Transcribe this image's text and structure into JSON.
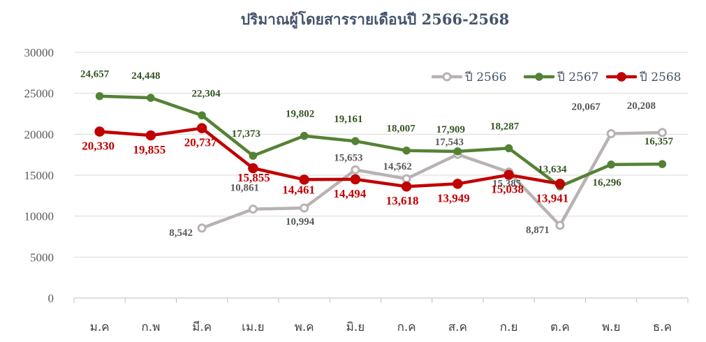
{
  "chart_data": {
    "type": "line",
    "title": "ปริมาณผู้โดยสารรายเดือนปี 2566-2568",
    "categories": [
      "ม.ค",
      "ก.พ",
      "มี.ค",
      "เม.ย",
      "พ.ค",
      "มิ.ย",
      "ก.ค",
      "ส.ค",
      "ก.ย",
      "ต.ค",
      "พ.ย",
      "ธ.ค"
    ],
    "ylim": [
      0,
      30000
    ],
    "yticks": [
      "0",
      "5000",
      "10000",
      "15000",
      "20000",
      "25000",
      "30000"
    ],
    "grid": true,
    "legend_position": "top-right",
    "series": [
      {
        "name": "ปี 2566",
        "color": "#b9b2b2",
        "values": [
          null,
          null,
          8542,
          10861,
          10994,
          15653,
          14562,
          17543,
          15385,
          8871,
          20067,
          20208
        ],
        "labels": [
          null,
          null,
          "8,542",
          "10,861",
          "10,994",
          "15,653",
          "14,562",
          "17,543",
          "15,385",
          "8,871",
          "20,067",
          "20,208"
        ]
      },
      {
        "name": "ปี 2567",
        "color": "#548235",
        "values": [
          24657,
          24448,
          22304,
          17373,
          19802,
          19161,
          18007,
          17909,
          18287,
          13634,
          16296,
          16357
        ],
        "labels": [
          "24,657",
          "24,448",
          "22,304",
          "17,373",
          "19,802",
          "19,161",
          "18,007",
          "17,909",
          "18,287",
          "13,634",
          "16,296",
          "16,357"
        ]
      },
      {
        "name": "ปี 2568",
        "color": "#c00000",
        "values": [
          20330,
          19855,
          20737,
          15855,
          14461,
          14494,
          13618,
          13949,
          15038,
          13941,
          null,
          null
        ],
        "labels": [
          "20,330",
          "19,855",
          "20,737",
          "15,855",
          "14,461",
          "14,494",
          "13,618",
          "13,949",
          "15,038",
          "13,941",
          null,
          null
        ]
      }
    ]
  }
}
